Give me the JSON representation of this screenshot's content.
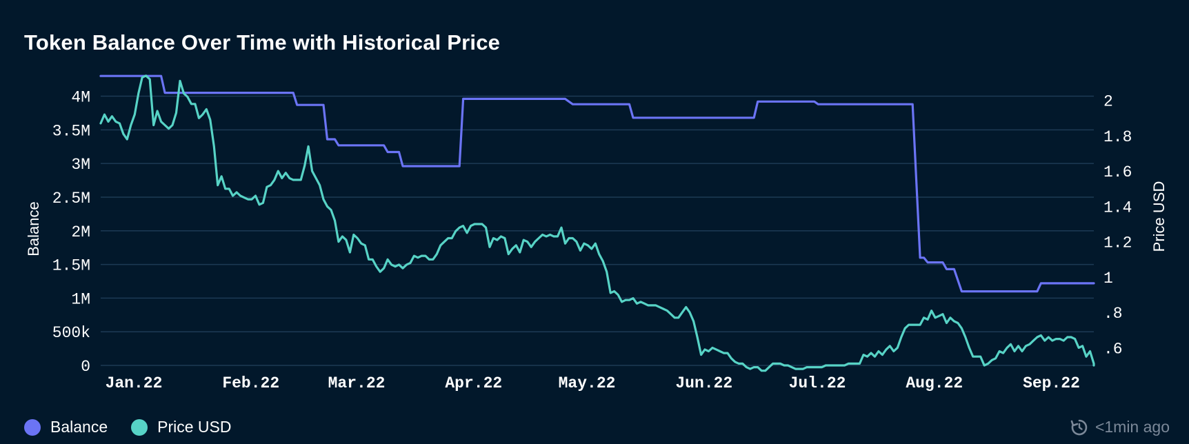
{
  "chart_data": {
    "type": "line",
    "title": "Token Balance Over Time with Historical Price",
    "ylabel": "Balance",
    "y2label": "Price USD",
    "ylim": [
      0,
      4200000
    ],
    "y2lim": [
      0.5,
      2.1
    ],
    "yticks": [
      0,
      500000,
      1000000,
      1500000,
      2000000,
      2500000,
      3000000,
      3500000,
      4000000
    ],
    "yticklabels": [
      "0",
      "500k",
      "1M",
      "1.5M",
      "2M",
      "2.5M",
      "3M",
      "3.5M",
      "4M"
    ],
    "y2ticks": [
      0.6,
      0.8,
      1.0,
      1.2,
      1.4,
      1.6,
      1.8,
      2.0
    ],
    "y2ticklabels": [
      ".6",
      ".8",
      "1",
      "1.2",
      "1.4",
      "1.6",
      "1.8",
      "2"
    ],
    "xlim": [
      0,
      263
    ],
    "xticks": [
      0,
      31,
      59,
      90,
      120,
      151,
      181,
      212,
      243
    ],
    "xticklabels": [
      "Jan.22",
      "Feb.22",
      "Mar.22",
      "Apr.22",
      "May.22",
      "Jun.22",
      "Jul.22",
      "Aug.22",
      "Sep.22"
    ],
    "grid": true,
    "legend": "bottom-left",
    "series": [
      {
        "name": "Balance",
        "color": "#6b74f5",
        "axis": "left",
        "step": true,
        "points": [
          [
            0,
            4300000
          ],
          [
            16,
            4300000
          ],
          [
            17,
            4050000
          ],
          [
            51,
            4050000
          ],
          [
            52,
            3870000
          ],
          [
            59,
            3870000
          ],
          [
            60,
            3360000
          ],
          [
            62,
            3360000
          ],
          [
            63,
            3270000
          ],
          [
            75,
            3270000
          ],
          [
            76,
            3170000
          ],
          [
            79,
            3170000
          ],
          [
            80,
            2960000
          ],
          [
            95,
            2960000
          ],
          [
            96,
            3960000
          ],
          [
            123,
            3960000
          ],
          [
            125,
            3880000
          ],
          [
            140,
            3880000
          ],
          [
            141,
            3680000
          ],
          [
            173,
            3680000
          ],
          [
            174,
            3920000
          ],
          [
            189,
            3920000
          ],
          [
            190,
            3880000
          ],
          [
            215,
            3880000
          ],
          [
            217,
            1600000
          ],
          [
            218,
            1600000
          ],
          [
            219,
            1530000
          ],
          [
            223,
            1530000
          ],
          [
            224,
            1430000
          ],
          [
            226,
            1430000
          ],
          [
            228,
            1100000
          ],
          [
            248,
            1100000
          ],
          [
            249,
            1220000
          ],
          [
            270,
            1220000
          ]
        ]
      },
      {
        "name": "Price USD",
        "color": "#57d3c6",
        "axis": "right",
        "points": [
          [
            0,
            1.87
          ],
          [
            1,
            1.92
          ],
          [
            2,
            1.88
          ],
          [
            3,
            1.91
          ],
          [
            4,
            1.88
          ],
          [
            5,
            1.87
          ],
          [
            6,
            1.81
          ],
          [
            7,
            1.78
          ],
          [
            8,
            1.86
          ],
          [
            9,
            1.92
          ],
          [
            10,
            2.04
          ],
          [
            11,
            2.13
          ],
          [
            12,
            2.14
          ],
          [
            13,
            2.12
          ],
          [
            14,
            1.86
          ],
          [
            15,
            1.94
          ],
          [
            16,
            1.88
          ],
          [
            17,
            1.86
          ],
          [
            18,
            1.84
          ],
          [
            19,
            1.86
          ],
          [
            20,
            1.93
          ],
          [
            21,
            2.11
          ],
          [
            22,
            2.04
          ],
          [
            23,
            2.02
          ],
          [
            24,
            1.98
          ],
          [
            25,
            1.98
          ],
          [
            26,
            1.9
          ],
          [
            27,
            1.92
          ],
          [
            28,
            1.95
          ],
          [
            29,
            1.89
          ],
          [
            30,
            1.74
          ],
          [
            31,
            1.52
          ],
          [
            32,
            1.57
          ],
          [
            33,
            1.5
          ],
          [
            34,
            1.5
          ],
          [
            35,
            1.46
          ],
          [
            36,
            1.48
          ],
          [
            37,
            1.46
          ],
          [
            38,
            1.45
          ],
          [
            39,
            1.44
          ],
          [
            40,
            1.44
          ],
          [
            41,
            1.46
          ],
          [
            42,
            1.41
          ],
          [
            43,
            1.42
          ],
          [
            44,
            1.51
          ],
          [
            45,
            1.52
          ],
          [
            46,
            1.55
          ],
          [
            47,
            1.6
          ],
          [
            48,
            1.56
          ],
          [
            49,
            1.59
          ],
          [
            50,
            1.56
          ],
          [
            51,
            1.55
          ],
          [
            52,
            1.55
          ],
          [
            53,
            1.55
          ],
          [
            54,
            1.63
          ],
          [
            55,
            1.74
          ],
          [
            56,
            1.6
          ],
          [
            57,
            1.56
          ],
          [
            58,
            1.52
          ],
          [
            59,
            1.44
          ],
          [
            60,
            1.4
          ],
          [
            61,
            1.38
          ],
          [
            62,
            1.32
          ],
          [
            63,
            1.2
          ],
          [
            64,
            1.23
          ],
          [
            65,
            1.21
          ],
          [
            66,
            1.14
          ],
          [
            67,
            1.24
          ],
          [
            68,
            1.22
          ],
          [
            69,
            1.19
          ],
          [
            70,
            1.18
          ],
          [
            71,
            1.1
          ],
          [
            72,
            1.1
          ],
          [
            73,
            1.06
          ],
          [
            74,
            1.03
          ],
          [
            75,
            1.05
          ],
          [
            76,
            1.1
          ],
          [
            77,
            1.07
          ],
          [
            78,
            1.06
          ],
          [
            79,
            1.07
          ],
          [
            80,
            1.05
          ],
          [
            81,
            1.07
          ],
          [
            82,
            1.08
          ],
          [
            83,
            1.12
          ],
          [
            84,
            1.11
          ],
          [
            85,
            1.12
          ],
          [
            86,
            1.12
          ],
          [
            87,
            1.1
          ],
          [
            88,
            1.1
          ],
          [
            89,
            1.13
          ],
          [
            90,
            1.18
          ],
          [
            91,
            1.2
          ],
          [
            92,
            1.22
          ],
          [
            93,
            1.22
          ],
          [
            94,
            1.26
          ],
          [
            95,
            1.28
          ],
          [
            96,
            1.29
          ],
          [
            97,
            1.25
          ],
          [
            98,
            1.29
          ],
          [
            99,
            1.3
          ],
          [
            100,
            1.3
          ],
          [
            101,
            1.3
          ],
          [
            102,
            1.28
          ],
          [
            103,
            1.17
          ],
          [
            104,
            1.22
          ],
          [
            105,
            1.21
          ],
          [
            106,
            1.23
          ],
          [
            107,
            1.22
          ],
          [
            108,
            1.13
          ],
          [
            109,
            1.16
          ],
          [
            110,
            1.18
          ],
          [
            111,
            1.14
          ],
          [
            112,
            1.21
          ],
          [
            113,
            1.2
          ],
          [
            114,
            1.17
          ],
          [
            115,
            1.2
          ],
          [
            116,
            1.22
          ],
          [
            117,
            1.24
          ],
          [
            118,
            1.23
          ],
          [
            119,
            1.24
          ],
          [
            120,
            1.23
          ],
          [
            121,
            1.23
          ],
          [
            122,
            1.28
          ],
          [
            123,
            1.19
          ],
          [
            124,
            1.22
          ],
          [
            125,
            1.22
          ],
          [
            126,
            1.2
          ],
          [
            127,
            1.15
          ],
          [
            128,
            1.19
          ],
          [
            129,
            1.18
          ],
          [
            130,
            1.16
          ],
          [
            131,
            1.19
          ],
          [
            132,
            1.13
          ],
          [
            133,
            1.09
          ],
          [
            134,
            1.03
          ],
          [
            135,
            0.91
          ],
          [
            136,
            0.92
          ],
          [
            137,
            0.9
          ],
          [
            138,
            0.86
          ],
          [
            139,
            0.87
          ],
          [
            140,
            0.87
          ],
          [
            141,
            0.88
          ],
          [
            142,
            0.85
          ],
          [
            143,
            0.86
          ],
          [
            144,
            0.85
          ],
          [
            145,
            0.84
          ],
          [
            146,
            0.84
          ],
          [
            147,
            0.84
          ],
          [
            148,
            0.83
          ],
          [
            149,
            0.82
          ],
          [
            150,
            0.81
          ],
          [
            151,
            0.79
          ],
          [
            152,
            0.77
          ],
          [
            153,
            0.77
          ],
          [
            154,
            0.8
          ],
          [
            155,
            0.83
          ],
          [
            156,
            0.8
          ],
          [
            157,
            0.75
          ],
          [
            158,
            0.66
          ],
          [
            159,
            0.56
          ],
          [
            160,
            0.59
          ],
          [
            161,
            0.58
          ],
          [
            162,
            0.6
          ],
          [
            163,
            0.59
          ],
          [
            164,
            0.58
          ],
          [
            165,
            0.57
          ],
          [
            166,
            0.57
          ],
          [
            167,
            0.54
          ],
          [
            168,
            0.52
          ],
          [
            169,
            0.51
          ],
          [
            170,
            0.51
          ],
          [
            171,
            0.49
          ],
          [
            172,
            0.48
          ],
          [
            173,
            0.49
          ],
          [
            174,
            0.49
          ],
          [
            175,
            0.47
          ],
          [
            176,
            0.47
          ],
          [
            177,
            0.49
          ],
          [
            178,
            0.51
          ],
          [
            179,
            0.51
          ],
          [
            180,
            0.51
          ],
          [
            181,
            0.5
          ],
          [
            182,
            0.5
          ],
          [
            183,
            0.49
          ],
          [
            184,
            0.48
          ],
          [
            185,
            0.48
          ],
          [
            186,
            0.48
          ],
          [
            187,
            0.49
          ],
          [
            188,
            0.49
          ],
          [
            189,
            0.49
          ],
          [
            190,
            0.49
          ],
          [
            191,
            0.49
          ],
          [
            192,
            0.5
          ],
          [
            193,
            0.5
          ],
          [
            194,
            0.5
          ],
          [
            195,
            0.5
          ],
          [
            196,
            0.5
          ],
          [
            197,
            0.5
          ],
          [
            198,
            0.51
          ],
          [
            199,
            0.51
          ],
          [
            200,
            0.51
          ],
          [
            201,
            0.51
          ],
          [
            202,
            0.56
          ],
          [
            203,
            0.55
          ],
          [
            204,
            0.57
          ],
          [
            205,
            0.55
          ],
          [
            206,
            0.58
          ],
          [
            207,
            0.56
          ],
          [
            208,
            0.59
          ],
          [
            209,
            0.61
          ],
          [
            210,
            0.58
          ],
          [
            211,
            0.6
          ],
          [
            212,
            0.66
          ],
          [
            213,
            0.71
          ],
          [
            214,
            0.73
          ],
          [
            215,
            0.73
          ],
          [
            216,
            0.73
          ],
          [
            217,
            0.73
          ],
          [
            218,
            0.77
          ],
          [
            219,
            0.76
          ],
          [
            220,
            0.81
          ],
          [
            221,
            0.77
          ],
          [
            222,
            0.78
          ],
          [
            223,
            0.79
          ],
          [
            224,
            0.74
          ],
          [
            225,
            0.77
          ],
          [
            226,
            0.75
          ],
          [
            227,
            0.74
          ],
          [
            228,
            0.71
          ],
          [
            229,
            0.66
          ],
          [
            230,
            0.6
          ],
          [
            231,
            0.55
          ],
          [
            232,
            0.55
          ],
          [
            233,
            0.55
          ],
          [
            234,
            0.5
          ],
          [
            235,
            0.51
          ],
          [
            236,
            0.53
          ],
          [
            237,
            0.54
          ],
          [
            238,
            0.58
          ],
          [
            239,
            0.57
          ],
          [
            240,
            0.6
          ],
          [
            241,
            0.62
          ],
          [
            242,
            0.58
          ],
          [
            243,
            0.61
          ],
          [
            244,
            0.58
          ],
          [
            245,
            0.61
          ],
          [
            246,
            0.62
          ],
          [
            247,
            0.64
          ],
          [
            248,
            0.66
          ],
          [
            249,
            0.67
          ],
          [
            250,
            0.64
          ],
          [
            251,
            0.66
          ],
          [
            252,
            0.64
          ],
          [
            253,
            0.65
          ],
          [
            254,
            0.65
          ],
          [
            255,
            0.64
          ],
          [
            256,
            0.66
          ],
          [
            257,
            0.66
          ],
          [
            258,
            0.65
          ],
          [
            259,
            0.6
          ],
          [
            260,
            0.61
          ],
          [
            261,
            0.55
          ],
          [
            262,
            0.58
          ],
          [
            263,
            0.51
          ],
          [
            264,
            0.5
          ]
        ]
      }
    ]
  },
  "legend": {
    "items": [
      {
        "label": "Balance",
        "color": "#6b74f5"
      },
      {
        "label": "Price USD",
        "color": "#57d3c6"
      }
    ]
  },
  "footer": {
    "updated_text": "<1min ago"
  }
}
